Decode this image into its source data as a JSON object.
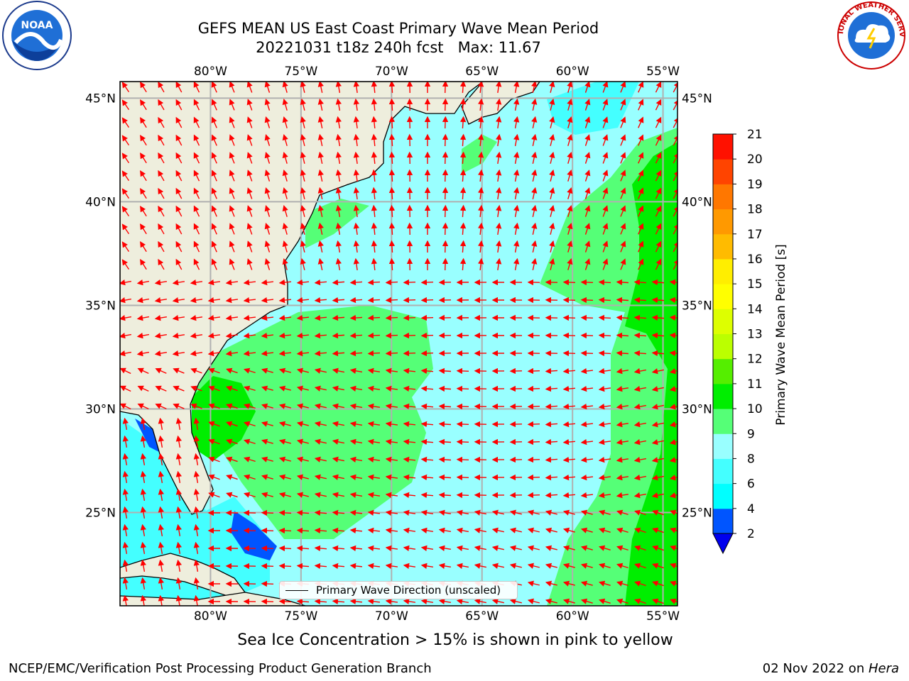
{
  "title": {
    "line1": "GEFS MEAN US East Coast Primary Wave Mean Period",
    "line2": "20221031 t18z 240h fcst   Max: 11.67"
  },
  "logos": {
    "left": "noaa-logo",
    "left_text": "NOAA",
    "right": "nws-logo",
    "right_text": "NATIONAL WEATHER SERVICE"
  },
  "map": {
    "extent": {
      "lon_min": -85,
      "lon_max": -54.2,
      "lat_min": 20.5,
      "lat_max": 45.8
    },
    "lon_ticks": [
      {
        "lon": -80,
        "label": "80°W"
      },
      {
        "lon": -75,
        "label": "75°W"
      },
      {
        "lon": -70,
        "label": "70°W"
      },
      {
        "lon": -65,
        "label": "65°W"
      },
      {
        "lon": -60,
        "label": "60°W"
      },
      {
        "lon": -55,
        "label": "55°W"
      }
    ],
    "lat_ticks": [
      {
        "lat": 45,
        "label": "45°N"
      },
      {
        "lat": 40,
        "label": "40°N"
      },
      {
        "lat": 35,
        "label": "35°N"
      },
      {
        "lat": 30,
        "label": "30°N"
      },
      {
        "lat": 25,
        "label": "25°N"
      }
    ],
    "colors": {
      "land": "#eeeedd",
      "ocean": "#99ffff",
      "arrow": "#ff0000",
      "grid": "#b0b0b0",
      "coast": "#000000"
    },
    "legend_label": "Primary Wave Direction (unscaled)"
  },
  "colorbar": {
    "label": "Primary Wave Mean Period [s]",
    "bounds": [
      2,
      4,
      6,
      8,
      9,
      10,
      11,
      12,
      13,
      14,
      15,
      16,
      17,
      18,
      19,
      20,
      21
    ],
    "colors": [
      "#0055ff",
      "#00ffff",
      "#44ffff",
      "#99ffff",
      "#55ff77",
      "#00ee00",
      "#55ee00",
      "#bbff00",
      "#ddff00",
      "#ffff00",
      "#ffee00",
      "#ffbb00",
      "#ff9900",
      "#ff7700",
      "#ff4400",
      "#ff1100"
    ],
    "extend_min_color": "#0000ee"
  },
  "note": "Sea Ice Concentration > 15% is shown in pink to yellow",
  "footer": {
    "left": "NCEP/EMC/Verification Post Processing Product Generation Branch",
    "right_date": "02 Nov 2022 on ",
    "right_machine": "Hera"
  }
}
